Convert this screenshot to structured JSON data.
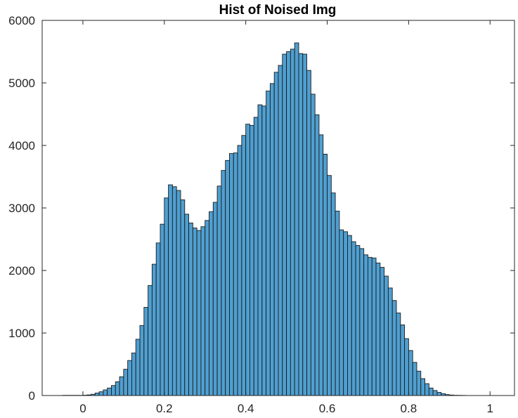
{
  "chart_data": {
    "type": "bar",
    "title": "Hist of Noised Img",
    "xlabel": "",
    "ylabel": "",
    "xlim": [
      -0.1,
      1.06
    ],
    "ylim": [
      0,
      6000
    ],
    "xticks": [
      0,
      0.2,
      0.4,
      0.6,
      0.8,
      1
    ],
    "xtick_labels": [
      "0",
      "0.2",
      "0.4",
      "0.6",
      "0.8",
      "1"
    ],
    "yticks": [
      0,
      1000,
      2000,
      3000,
      4000,
      5000,
      6000
    ],
    "ytick_labels": [
      "0",
      "1000",
      "2000",
      "3000",
      "4000",
      "5000",
      "6000"
    ],
    "grid": false,
    "legend": "none",
    "bar_color": "#4f9fd1",
    "edge_color": "#1c1c1c",
    "bin_edges_start": -0.05,
    "bin_width": 0.01,
    "values": [
      3,
      3,
      3,
      3,
      3,
      5,
      10,
      20,
      40,
      60,
      90,
      120,
      160,
      220,
      300,
      420,
      560,
      680,
      900,
      1120,
      1410,
      1760,
      2100,
      2440,
      2740,
      3160,
      3370,
      3340,
      3280,
      3130,
      2900,
      2760,
      2680,
      2640,
      2700,
      2800,
      2940,
      3090,
      3350,
      3600,
      3760,
      3870,
      3880,
      4000,
      4160,
      4340,
      4320,
      4450,
      4650,
      4630,
      4870,
      4990,
      5170,
      5280,
      5460,
      5500,
      5540,
      5640,
      5470,
      5460,
      5200,
      4820,
      4490,
      4170,
      3860,
      3520,
      3240,
      2950,
      2650,
      2620,
      2560,
      2460,
      2400,
      2350,
      2250,
      2210,
      2200,
      2120,
      2050,
      1910,
      1720,
      1520,
      1320,
      1130,
      910,
      720,
      530,
      390,
      270,
      190,
      120,
      80,
      50,
      30,
      15,
      8,
      4,
      3,
      2
    ]
  }
}
